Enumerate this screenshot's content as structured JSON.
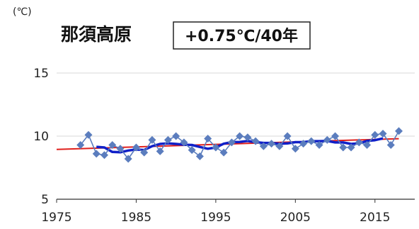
{
  "chart_data": {
    "type": "line",
    "title": "那須高原",
    "annotation": "+0.75℃/40年",
    "unit_label": "(℃)",
    "xlabel": "",
    "ylabel": "",
    "xlim": [
      1975,
      2020
    ],
    "ylim": [
      5,
      20
    ],
    "x_ticks": [
      1975,
      1985,
      1995,
      2005,
      2015
    ],
    "y_ticks": [
      5,
      10,
      15
    ],
    "grid": "horizontal",
    "colors": {
      "annual": "#5B7DBE",
      "moving_average": "#1020C8",
      "trend": "#E0201C",
      "grid": "#D9D9D9"
    },
    "series": [
      {
        "kind": "annual",
        "marker": "diamond",
        "x": [
          1978,
          1979,
          1980,
          1981,
          1982,
          1983,
          1984,
          1985,
          1986,
          1987,
          1988,
          1989,
          1990,
          1991,
          1992,
          1993,
          1994,
          1995,
          1996,
          1997,
          1998,
          1999,
          2000,
          2001,
          2002,
          2003,
          2004,
          2005,
          2006,
          2007,
          2008,
          2009,
          2010,
          2011,
          2012,
          2013,
          2014,
          2015,
          2016,
          2017,
          2018
        ],
        "values": [
          9.3,
          10.1,
          8.6,
          8.5,
          9.3,
          9.0,
          8.2,
          9.1,
          8.7,
          9.7,
          8.8,
          9.7,
          10.0,
          9.5,
          8.9,
          8.4,
          9.8,
          9.1,
          8.7,
          9.5,
          10.0,
          9.9,
          9.6,
          9.2,
          9.4,
          9.2,
          10.0,
          9.0,
          9.4,
          9.6,
          9.3,
          9.7,
          10.0,
          9.1,
          9.1,
          9.5,
          9.3,
          10.1,
          10.2,
          9.3,
          10.4
        ]
      },
      {
        "kind": "moving_average",
        "x": [
          1980,
          1981,
          1982,
          1983,
          1984,
          1985,
          1986,
          1987,
          1988,
          1989,
          1990,
          1991,
          1992,
          1993,
          1994,
          1995,
          1996,
          1997,
          1998,
          1999,
          2000,
          2001,
          2002,
          2003,
          2004,
          2005,
          2006,
          2007,
          2008,
          2009,
          2010,
          2011,
          2012,
          2013,
          2014,
          2015,
          2016
        ],
        "values": [
          9.15,
          9.1,
          8.75,
          8.72,
          8.86,
          8.94,
          8.9,
          9.2,
          9.38,
          9.42,
          9.38,
          9.32,
          9.3,
          9.14,
          9.0,
          9.1,
          9.4,
          9.52,
          9.54,
          9.62,
          9.52,
          9.46,
          9.46,
          9.4,
          9.42,
          9.52,
          9.52,
          9.6,
          9.6,
          9.62,
          9.5,
          9.5,
          9.38,
          9.42,
          9.62,
          9.68,
          9.82
        ]
      },
      {
        "kind": "trend",
        "x": [
          1975,
          2018
        ],
        "values": [
          8.95,
          9.8
        ]
      }
    ]
  }
}
